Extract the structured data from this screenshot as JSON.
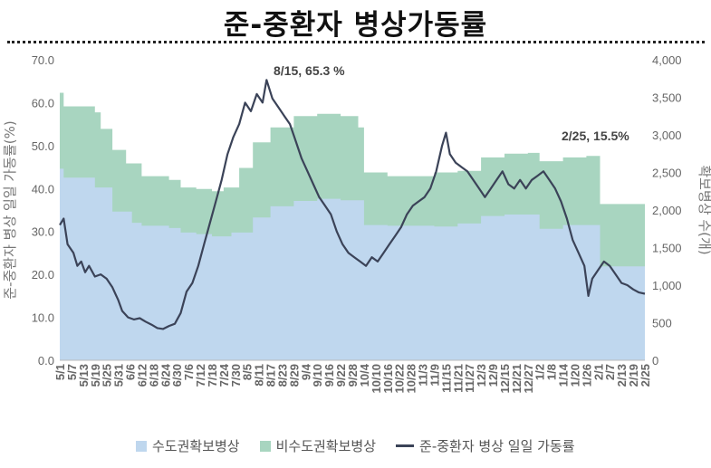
{
  "title": "준-중환자 병상가동률",
  "chart_data": {
    "type": "area",
    "ylabel": "준-중환자 병상 일일 가동률(%)",
    "y2label": "확보병상 수(개)",
    "ylim": [
      0,
      70
    ],
    "y2lim": [
      0,
      4000
    ],
    "y_ticks": [
      "0.0",
      "10.0",
      "20.0",
      "30.0",
      "40.0",
      "50.0",
      "60.0",
      "70.0"
    ],
    "y2_ticks": [
      "0",
      "500",
      "1,000",
      "1,500",
      "2,000",
      "2,500",
      "3,000",
      "3,500",
      "4,000"
    ],
    "x_tick_labels": [
      "5/1",
      "5/7",
      "5/13",
      "5/19",
      "5/25",
      "5/31",
      "6/6",
      "6/12",
      "6/18",
      "6/24",
      "6/30",
      "7/6",
      "7/12",
      "7/18",
      "7/24",
      "7/30",
      "8/5",
      "8/11",
      "8/17",
      "8/23",
      "8/29",
      "9/4",
      "9/10",
      "9/16",
      "9/22",
      "9/28",
      "10/4",
      "10/10",
      "10/16",
      "10/22",
      "10/28",
      "11/3",
      "11/9",
      "11/15",
      "11/21",
      "11/27",
      "12/3",
      "12/9",
      "12/15",
      "12/21",
      "12/27",
      "1/2",
      "1/8",
      "1/14",
      "1/20",
      "1/26",
      "2/1",
      "2/7",
      "2/13",
      "2/19",
      "2/25"
    ],
    "annotations": [
      {
        "text": "8/15, 65.3 %",
        "date": "8/15",
        "value": 65.3
      },
      {
        "text": "2/25, 15.5%",
        "date": "2/25",
        "value": 15.5
      }
    ],
    "series": [
      {
        "name": "수도권확보병상",
        "type": "area",
        "axis": "right",
        "color": "#bfd7ee",
        "points": [
          [
            "5/1",
            2550
          ],
          [
            "5/3",
            2430
          ],
          [
            "5/19",
            2300
          ],
          [
            "5/28",
            1980
          ],
          [
            "6/7",
            1830
          ],
          [
            "6/12",
            1790
          ],
          [
            "6/26",
            1760
          ],
          [
            "7/2",
            1700
          ],
          [
            "7/10",
            1680
          ],
          [
            "7/18",
            1650
          ],
          [
            "7/28",
            1700
          ],
          [
            "8/8",
            1900
          ],
          [
            "8/17",
            2050
          ],
          [
            "8/29",
            2120
          ],
          [
            "9/10",
            2150
          ],
          [
            "9/22",
            2130
          ],
          [
            "10/4",
            1800
          ],
          [
            "10/16",
            1790
          ],
          [
            "10/28",
            1790
          ],
          [
            "11/9",
            1780
          ],
          [
            "11/21",
            1820
          ],
          [
            "12/3",
            1920
          ],
          [
            "12/15",
            1940
          ],
          [
            "12/27",
            1940
          ],
          [
            "1/2",
            1750
          ],
          [
            "1/14",
            1800
          ],
          [
            "1/26",
            1800
          ],
          [
            "2/1",
            1800
          ],
          [
            "2/2",
            1250
          ],
          [
            "2/25",
            1250
          ]
        ]
      },
      {
        "name": "비수도권확보병상",
        "type": "area",
        "axis": "right",
        "color": "#a8d5c0",
        "stack_total_points": [
          [
            "5/1",
            3560
          ],
          [
            "5/3",
            3380
          ],
          [
            "5/19",
            3300
          ],
          [
            "5/22",
            3080
          ],
          [
            "5/28",
            2800
          ],
          [
            "6/4",
            2620
          ],
          [
            "6/12",
            2450
          ],
          [
            "6/26",
            2400
          ],
          [
            "7/2",
            2300
          ],
          [
            "7/10",
            2280
          ],
          [
            "7/18",
            2250
          ],
          [
            "7/24",
            2300
          ],
          [
            "8/1",
            2560
          ],
          [
            "8/8",
            2900
          ],
          [
            "8/17",
            3100
          ],
          [
            "8/29",
            3250
          ],
          [
            "9/10",
            3280
          ],
          [
            "9/22",
            3250
          ],
          [
            "10/1",
            3100
          ],
          [
            "10/4",
            2500
          ],
          [
            "10/16",
            2450
          ],
          [
            "10/28",
            2450
          ],
          [
            "11/9",
            2500
          ],
          [
            "11/21",
            2520
          ],
          [
            "12/3",
            2700
          ],
          [
            "12/15",
            2750
          ],
          [
            "12/27",
            2760
          ],
          [
            "1/2",
            2650
          ],
          [
            "1/14",
            2700
          ],
          [
            "1/26",
            2720
          ],
          [
            "2/1",
            2720
          ],
          [
            "2/2",
            2080
          ],
          [
            "2/25",
            2060
          ]
        ]
      },
      {
        "name": "준-중환자 병상 일일 가동률",
        "type": "line",
        "axis": "left",
        "color": "#3b4358",
        "points": [
          [
            "5/1",
            31.5
          ],
          [
            "5/3",
            33
          ],
          [
            "5/5",
            27
          ],
          [
            "5/8",
            25
          ],
          [
            "5/10",
            22
          ],
          [
            "5/12",
            23
          ],
          [
            "5/14",
            20.5
          ],
          [
            "5/16",
            22
          ],
          [
            "5/19",
            19.5
          ],
          [
            "5/22",
            20
          ],
          [
            "5/25",
            19
          ],
          [
            "5/28",
            17
          ],
          [
            "5/31",
            14
          ],
          [
            "6/2",
            11.5
          ],
          [
            "6/5",
            10
          ],
          [
            "6/8",
            9.5
          ],
          [
            "6/11",
            9.8
          ],
          [
            "6/14",
            9
          ],
          [
            "6/17",
            8.3
          ],
          [
            "6/20",
            7.5
          ],
          [
            "6/23",
            7.3
          ],
          [
            "6/26",
            8
          ],
          [
            "6/29",
            8.5
          ],
          [
            "7/2",
            11
          ],
          [
            "7/5",
            16
          ],
          [
            "7/8",
            18
          ],
          [
            "7/11",
            22
          ],
          [
            "7/14",
            27
          ],
          [
            "7/17",
            32
          ],
          [
            "7/20",
            37
          ],
          [
            "7/23",
            42
          ],
          [
            "7/26",
            48
          ],
          [
            "7/29",
            52
          ],
          [
            "8/1",
            55
          ],
          [
            "8/4",
            60
          ],
          [
            "8/7",
            58
          ],
          [
            "8/10",
            62
          ],
          [
            "8/13",
            60
          ],
          [
            "8/15",
            65.3
          ],
          [
            "8/18",
            61
          ],
          [
            "8/21",
            59
          ],
          [
            "8/24",
            57
          ],
          [
            "8/27",
            55
          ],
          [
            "8/30",
            51
          ],
          [
            "9/2",
            47
          ],
          [
            "9/5",
            44
          ],
          [
            "9/8",
            41
          ],
          [
            "9/11",
            38
          ],
          [
            "9/14",
            36
          ],
          [
            "9/17",
            34
          ],
          [
            "9/20",
            30
          ],
          [
            "9/23",
            27
          ],
          [
            "9/26",
            25
          ],
          [
            "9/29",
            24
          ],
          [
            "10/2",
            23
          ],
          [
            "10/5",
            22
          ],
          [
            "10/8",
            24
          ],
          [
            "10/11",
            23
          ],
          [
            "10/14",
            25
          ],
          [
            "10/17",
            27
          ],
          [
            "10/20",
            29
          ],
          [
            "10/23",
            31
          ],
          [
            "10/26",
            34
          ],
          [
            "10/29",
            36
          ],
          [
            "11/1",
            37
          ],
          [
            "11/4",
            38
          ],
          [
            "11/7",
            40
          ],
          [
            "11/10",
            44
          ],
          [
            "11/13",
            50
          ],
          [
            "11/15",
            53
          ],
          [
            "11/17",
            48
          ],
          [
            "11/20",
            46
          ],
          [
            "11/23",
            45
          ],
          [
            "11/26",
            44
          ],
          [
            "11/29",
            42
          ],
          [
            "12/2",
            40
          ],
          [
            "12/5",
            38
          ],
          [
            "12/8",
            40
          ],
          [
            "12/11",
            42
          ],
          [
            "12/14",
            44
          ],
          [
            "12/17",
            41
          ],
          [
            "12/20",
            40
          ],
          [
            "12/23",
            42
          ],
          [
            "12/26",
            40
          ],
          [
            "12/29",
            42
          ],
          [
            "1/1",
            43
          ],
          [
            "1/4",
            44
          ],
          [
            "1/7",
            42
          ],
          [
            "1/10",
            40
          ],
          [
            "1/13",
            37
          ],
          [
            "1/16",
            33
          ],
          [
            "1/19",
            28
          ],
          [
            "1/22",
            25
          ],
          [
            "1/25",
            22
          ],
          [
            "1/27",
            15
          ],
          [
            "1/29",
            19
          ],
          [
            "2/1",
            21
          ],
          [
            "2/4",
            23
          ],
          [
            "2/7",
            22
          ],
          [
            "2/10",
            20
          ],
          [
            "2/13",
            18
          ],
          [
            "2/16",
            17.5
          ],
          [
            "2/19",
            16.5
          ],
          [
            "2/22",
            15.8
          ],
          [
            "2/25",
            15.5
          ]
        ]
      }
    ],
    "legend": [
      {
        "label": "수도권확보병상",
        "kind": "area",
        "color": "#bfd7ee"
      },
      {
        "label": "비수도권확보병상",
        "kind": "area",
        "color": "#a8d5c0"
      },
      {
        "label": "준-중환자 병상 일일 가동률",
        "kind": "line",
        "color": "#3b4358"
      }
    ],
    "legend_position": "bottom",
    "grid": false
  }
}
